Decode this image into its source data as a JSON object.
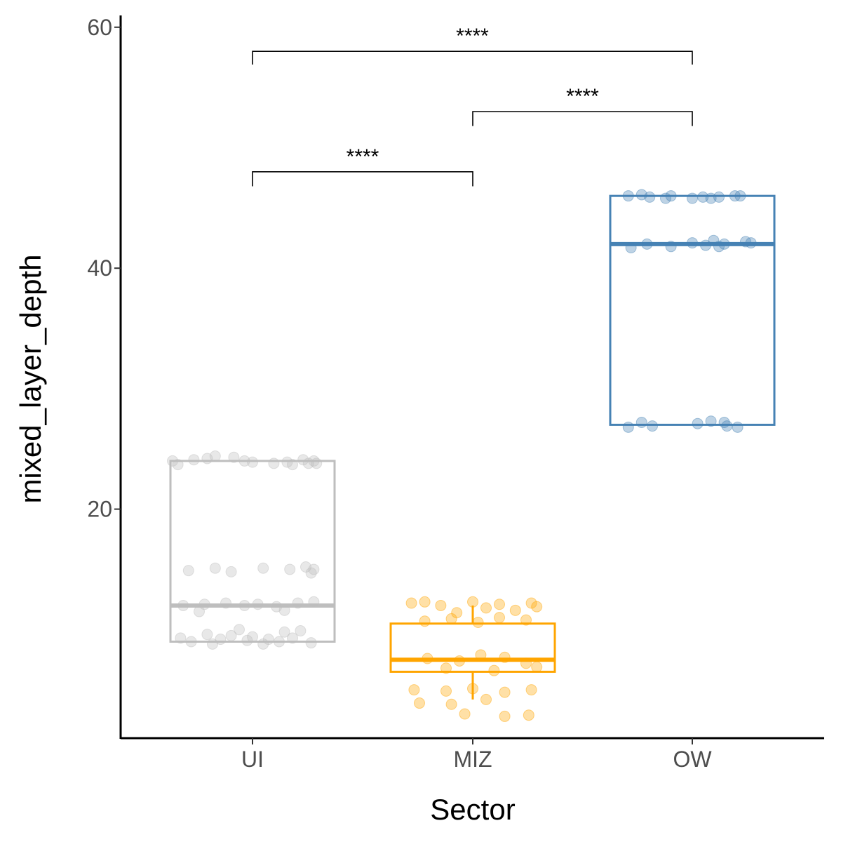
{
  "chart_data": {
    "type": "boxplot",
    "title": "",
    "xlabel": "Sector",
    "ylabel": "mixed_layer_depth",
    "ylim": [
      1,
      61
    ],
    "yticks": [
      20,
      40,
      60
    ],
    "grid": false,
    "legend": "none",
    "categories": [
      "UI",
      "MIZ",
      "OW"
    ],
    "series": [
      {
        "name": "UI",
        "color": "#BEBEBE",
        "box": {
          "min": 9,
          "q1": 9,
          "median": 12,
          "q3": 24,
          "max": 24
        },
        "points": [
          {
            "x": -0.3,
            "y": 24.0
          },
          {
            "x": -0.28,
            "y": 23.7
          },
          {
            "x": -0.22,
            "y": 24.1
          },
          {
            "x": -0.17,
            "y": 24.2
          },
          {
            "x": -0.14,
            "y": 24.4
          },
          {
            "x": -0.07,
            "y": 24.3
          },
          {
            "x": -0.03,
            "y": 24.0
          },
          {
            "x": 0.0,
            "y": 23.9
          },
          {
            "x": 0.08,
            "y": 23.8
          },
          {
            "x": 0.13,
            "y": 23.9
          },
          {
            "x": 0.15,
            "y": 23.7
          },
          {
            "x": 0.19,
            "y": 24.1
          },
          {
            "x": 0.21,
            "y": 23.8
          },
          {
            "x": 0.23,
            "y": 24.0
          },
          {
            "x": 0.24,
            "y": 23.8
          },
          {
            "x": -0.24,
            "y": 14.9
          },
          {
            "x": -0.14,
            "y": 15.1
          },
          {
            "x": -0.08,
            "y": 14.8
          },
          {
            "x": 0.04,
            "y": 15.1
          },
          {
            "x": 0.14,
            "y": 15.0
          },
          {
            "x": 0.2,
            "y": 15.2
          },
          {
            "x": 0.22,
            "y": 14.7
          },
          {
            "x": 0.23,
            "y": 15.0
          },
          {
            "x": -0.26,
            "y": 12.0
          },
          {
            "x": -0.18,
            "y": 12.1
          },
          {
            "x": -0.1,
            "y": 12.2
          },
          {
            "x": -0.03,
            "y": 12.0
          },
          {
            "x": 0.02,
            "y": 12.1
          },
          {
            "x": 0.09,
            "y": 11.9
          },
          {
            "x": 0.17,
            "y": 12.2
          },
          {
            "x": 0.23,
            "y": 12.3
          },
          {
            "x": -0.2,
            "y": 11.5
          },
          {
            "x": 0.12,
            "y": 11.6
          },
          {
            "x": -0.27,
            "y": 9.3
          },
          {
            "x": -0.23,
            "y": 9.0
          },
          {
            "x": -0.17,
            "y": 9.6
          },
          {
            "x": -0.15,
            "y": 8.8
          },
          {
            "x": -0.12,
            "y": 9.2
          },
          {
            "x": -0.08,
            "y": 9.5
          },
          {
            "x": -0.05,
            "y": 10.0
          },
          {
            "x": -0.02,
            "y": 9.1
          },
          {
            "x": 0.0,
            "y": 9.4
          },
          {
            "x": 0.04,
            "y": 8.8
          },
          {
            "x": 0.06,
            "y": 9.2
          },
          {
            "x": 0.1,
            "y": 9.0
          },
          {
            "x": 0.12,
            "y": 9.8
          },
          {
            "x": 0.15,
            "y": 9.3
          },
          {
            "x": 0.18,
            "y": 9.9
          },
          {
            "x": 0.22,
            "y": 8.9
          }
        ]
      },
      {
        "name": "MIZ",
        "color": "#FFA500",
        "box": {
          "min": 4.2,
          "q1": 6.5,
          "median": 7.5,
          "q3": 10.5,
          "max": 12
        },
        "points": [
          {
            "x": -0.23,
            "y": 12.2
          },
          {
            "x": -0.18,
            "y": 12.3
          },
          {
            "x": -0.12,
            "y": 12.0
          },
          {
            "x": -0.06,
            "y": 11.4
          },
          {
            "x": 0.0,
            "y": 12.3
          },
          {
            "x": 0.05,
            "y": 11.8
          },
          {
            "x": 0.1,
            "y": 12.1
          },
          {
            "x": 0.16,
            "y": 11.6
          },
          {
            "x": 0.22,
            "y": 12.2
          },
          {
            "x": 0.24,
            "y": 11.9
          },
          {
            "x": -0.18,
            "y": 10.7
          },
          {
            "x": -0.08,
            "y": 10.9
          },
          {
            "x": 0.02,
            "y": 10.6
          },
          {
            "x": 0.1,
            "y": 11.0
          },
          {
            "x": 0.2,
            "y": 10.8
          },
          {
            "x": -0.17,
            "y": 7.6
          },
          {
            "x": -0.05,
            "y": 7.4
          },
          {
            "x": 0.03,
            "y": 7.9
          },
          {
            "x": 0.12,
            "y": 7.7
          },
          {
            "x": 0.2,
            "y": 7.2
          },
          {
            "x": 0.24,
            "y": 6.9
          },
          {
            "x": -0.1,
            "y": 6.8
          },
          {
            "x": 0.08,
            "y": 6.6
          },
          {
            "x": -0.22,
            "y": 5.0
          },
          {
            "x": -0.1,
            "y": 4.9
          },
          {
            "x": 0.0,
            "y": 5.1
          },
          {
            "x": 0.12,
            "y": 4.8
          },
          {
            "x": 0.22,
            "y": 5.0
          },
          {
            "x": -0.2,
            "y": 3.9
          },
          {
            "x": -0.08,
            "y": 3.8
          },
          {
            "x": 0.05,
            "y": 4.2
          },
          {
            "x": -0.03,
            "y": 3.0
          },
          {
            "x": 0.12,
            "y": 2.8
          },
          {
            "x": 0.21,
            "y": 2.9
          }
        ]
      },
      {
        "name": "OW",
        "color": "#4682B4",
        "box": {
          "min": 27,
          "q1": 27,
          "median": 42,
          "q3": 46,
          "max": 46
        },
        "points": [
          {
            "x": -0.24,
            "y": 46.0
          },
          {
            "x": -0.19,
            "y": 46.1
          },
          {
            "x": -0.16,
            "y": 45.9
          },
          {
            "x": -0.1,
            "y": 45.8
          },
          {
            "x": -0.08,
            "y": 46.0
          },
          {
            "x": 0.0,
            "y": 45.8
          },
          {
            "x": 0.04,
            "y": 45.9
          },
          {
            "x": 0.07,
            "y": 45.8
          },
          {
            "x": 0.1,
            "y": 45.9
          },
          {
            "x": 0.16,
            "y": 46.0
          },
          {
            "x": 0.18,
            "y": 46.0
          },
          {
            "x": -0.23,
            "y": 41.7
          },
          {
            "x": -0.17,
            "y": 42.0
          },
          {
            "x": -0.08,
            "y": 41.8
          },
          {
            "x": 0.0,
            "y": 42.1
          },
          {
            "x": 0.05,
            "y": 41.9
          },
          {
            "x": 0.08,
            "y": 42.3
          },
          {
            "x": 0.1,
            "y": 41.8
          },
          {
            "x": 0.12,
            "y": 42.0
          },
          {
            "x": 0.2,
            "y": 42.2
          },
          {
            "x": 0.22,
            "y": 42.1
          },
          {
            "x": -0.24,
            "y": 26.8
          },
          {
            "x": -0.19,
            "y": 27.2
          },
          {
            "x": -0.15,
            "y": 26.9
          },
          {
            "x": 0.02,
            "y": 27.1
          },
          {
            "x": 0.07,
            "y": 27.3
          },
          {
            "x": 0.12,
            "y": 27.2
          },
          {
            "x": 0.13,
            "y": 26.9
          },
          {
            "x": 0.17,
            "y": 26.8
          }
        ]
      }
    ],
    "comparisons": [
      {
        "from": "UI",
        "to": "OW",
        "label": "****",
        "y": 58,
        "drop": 1.1
      },
      {
        "from": "MIZ",
        "to": "OW",
        "label": "****",
        "y": 53,
        "drop": 1.2
      },
      {
        "from": "UI",
        "to": "MIZ",
        "label": "****",
        "y": 48,
        "drop": 1.2
      }
    ]
  }
}
